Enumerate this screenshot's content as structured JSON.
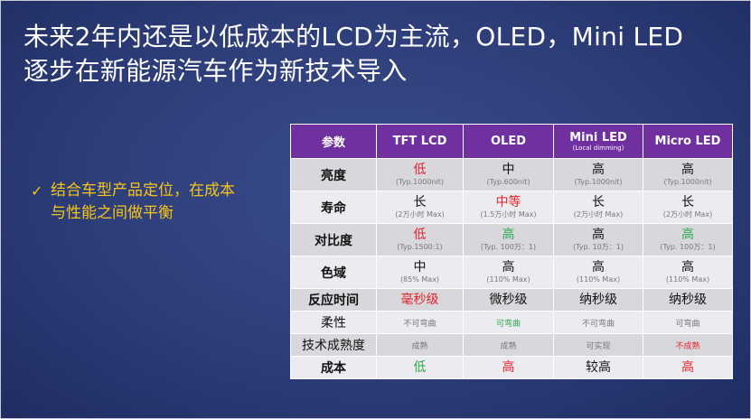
{
  "title": {
    "line1": "未来2年内还是以低成本的LCD为主流，OLED，Mini LED",
    "line2": "逐步在新能源汽车作为新技术导入"
  },
  "bullet": {
    "check": "✓",
    "line1": "结合车型产品定位，在成本",
    "line2": "与性能之间做平衡"
  },
  "table": {
    "headers": [
      "参数",
      "TFT LCD",
      "OLED",
      "Mini LED",
      "Micro LED"
    ],
    "mini_sub": "(Local dimming)",
    "rows": [
      {
        "param": "亮度",
        "cells": [
          {
            "main": "低",
            "sub": "(Typ.1000nit)"
          },
          {
            "main": "中",
            "sub": "(Typ.600nit)"
          },
          {
            "main": "高",
            "sub": "(Typ.1000nit)"
          },
          {
            "main": "高",
            "sub": "(Typ.1000nit)"
          }
        ]
      },
      {
        "param": "寿命",
        "cells": [
          {
            "main": "长",
            "sub": "(2万小时 Max)"
          },
          {
            "main": "中等",
            "sub": "(1.5万小时 Max)"
          },
          {
            "main": "长",
            "sub": "(2万小时 Max)"
          },
          {
            "main": "长",
            "sub": "(2万小时 Max)"
          }
        ]
      },
      {
        "param": "对比度",
        "cells": [
          {
            "main": "低",
            "sub": "(Typ.1500:1)"
          },
          {
            "main": "高",
            "sub": "(Typ. 100万：1)"
          },
          {
            "main": "高",
            "sub": "(Typ. 10万：1)"
          },
          {
            "main": "高",
            "sub": "(Typ. 100万：1)"
          }
        ]
      },
      {
        "param": "色域",
        "cells": [
          {
            "main": "中",
            "sub": "(85% Max)"
          },
          {
            "main": "高",
            "sub": "(110% Max)"
          },
          {
            "main": "高",
            "sub": "(110% Max)"
          },
          {
            "main": "高",
            "sub": "(110% Max)"
          }
        ]
      },
      {
        "param": "反应时间",
        "cells": [
          "毫秒级",
          "微秒级",
          "纳秒级",
          "纳秒级"
        ]
      },
      {
        "param": "柔性",
        "cells": [
          "不可弯曲",
          "可弯曲",
          "不可弯曲",
          "可弯曲"
        ]
      },
      {
        "param": "技术成熟度",
        "cells": [
          "成熟",
          "成熟",
          "可实现",
          "不成熟"
        ]
      },
      {
        "param": "成本",
        "cells": [
          "低",
          "高",
          "较高",
          "高"
        ]
      }
    ]
  },
  "colors": {
    "header_bg": "#7030a0",
    "red": "#e0242a",
    "green": "#2eaa4a",
    "bullet": "#f5c518",
    "background": "#2f3f78"
  }
}
